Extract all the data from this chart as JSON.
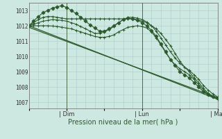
{
  "xlabel": "Pression niveau de la mer( hPa )",
  "bg_color": "#cce8e0",
  "grid_color": "#aacccc",
  "line_color": "#2d5a2d",
  "ylim": [
    1006.6,
    1013.5
  ],
  "yticks": [
    1007,
    1008,
    1009,
    1010,
    1011,
    1012,
    1013
  ],
  "xlim": [
    0,
    120
  ],
  "xtick_labels": [
    "",
    "| Dim",
    "",
    "| Lun",
    "",
    "| Mar"
  ],
  "xtick_positions": [
    0,
    24,
    48,
    72,
    96,
    120
  ],
  "vlines": [
    24,
    72,
    120
  ],
  "series": [
    {
      "x": [
        0,
        3,
        6,
        9,
        12,
        15,
        18,
        21,
        24,
        27,
        30,
        33,
        36,
        39,
        42,
        45,
        48,
        51,
        54,
        57,
        60,
        63,
        66,
        69,
        72,
        75,
        78,
        81,
        84,
        87,
        90,
        93,
        96,
        99,
        102,
        105,
        108,
        111,
        114,
        117,
        120
      ],
      "y": [
        1012.0,
        1012.2,
        1012.4,
        1012.55,
        1012.6,
        1012.6,
        1012.55,
        1012.5,
        1012.45,
        1012.45,
        1012.45,
        1012.45,
        1012.45,
        1012.45,
        1012.45,
        1012.45,
        1012.45,
        1012.45,
        1012.45,
        1012.45,
        1012.45,
        1012.45,
        1012.45,
        1012.4,
        1012.3,
        1012.2,
        1012.0,
        1011.8,
        1011.5,
        1011.1,
        1010.7,
        1010.2,
        1009.7,
        1009.3,
        1009.0,
        1008.6,
        1008.3,
        1007.9,
        1007.6,
        1007.4,
        1007.3
      ],
      "marker": "+",
      "lw": 0.8,
      "ms": 3
    },
    {
      "x": [
        0,
        3,
        6,
        9,
        12,
        15,
        18,
        21,
        24,
        27,
        30,
        33,
        36,
        39,
        42,
        45,
        48,
        51,
        54,
        57,
        60,
        63,
        66,
        69,
        72,
        75,
        78,
        81,
        84,
        87,
        90,
        93,
        96,
        99,
        102,
        105,
        108,
        111,
        114,
        117,
        120
      ],
      "y": [
        1012.0,
        1012.3,
        1012.6,
        1012.85,
        1013.0,
        1013.15,
        1013.25,
        1013.3,
        1013.2,
        1013.0,
        1012.8,
        1012.55,
        1012.3,
        1012.05,
        1011.85,
        1011.65,
        1011.65,
        1011.8,
        1012.0,
        1012.2,
        1012.4,
        1012.5,
        1012.45,
        1012.35,
        1012.2,
        1012.0,
        1011.7,
        1011.3,
        1010.8,
        1010.3,
        1009.8,
        1009.4,
        1009.0,
        1008.8,
        1008.6,
        1008.3,
        1008.0,
        1007.7,
        1007.5,
        1007.35,
        1007.3
      ],
      "marker": "D",
      "lw": 0.8,
      "ms": 2.5
    },
    {
      "x": [
        0,
        3,
        6,
        9,
        12,
        15,
        18,
        21,
        24,
        27,
        30,
        33,
        36,
        39,
        42,
        45,
        48,
        51,
        54,
        57,
        60,
        63,
        66,
        69,
        72,
        75,
        78,
        81,
        84,
        87,
        90,
        93,
        96,
        99,
        102,
        105,
        108,
        111,
        114,
        117,
        120
      ],
      "y": [
        1012.0,
        1012.1,
        1012.2,
        1012.3,
        1012.35,
        1012.4,
        1012.38,
        1012.35,
        1012.3,
        1012.2,
        1012.1,
        1011.95,
        1011.8,
        1011.65,
        1011.5,
        1011.5,
        1011.6,
        1011.75,
        1011.95,
        1012.2,
        1012.4,
        1012.55,
        1012.55,
        1012.5,
        1012.4,
        1012.25,
        1012.0,
        1011.65,
        1011.2,
        1010.75,
        1010.3,
        1009.9,
        1009.55,
        1009.3,
        1009.1,
        1008.8,
        1008.5,
        1008.1,
        1007.8,
        1007.55,
        1007.35
      ],
      "marker": "+",
      "lw": 0.8,
      "ms": 3
    },
    {
      "x": [
        0,
        3,
        6,
        9,
        12,
        15,
        18,
        21,
        24,
        27,
        30,
        33,
        36,
        39,
        42,
        45,
        48,
        51,
        54,
        57,
        60,
        63,
        66,
        69,
        72,
        75,
        78,
        81,
        84,
        87,
        90,
        93,
        96,
        99,
        102,
        105,
        108,
        111,
        114,
        117,
        120
      ],
      "y": [
        1012.0,
        1012.0,
        1012.0,
        1012.0,
        1012.0,
        1011.98,
        1011.95,
        1011.9,
        1011.85,
        1011.8,
        1011.7,
        1011.6,
        1011.5,
        1011.4,
        1011.3,
        1011.25,
        1011.25,
        1011.3,
        1011.4,
        1011.6,
        1011.75,
        1011.9,
        1011.95,
        1012.0,
        1011.95,
        1011.85,
        1011.6,
        1011.2,
        1010.75,
        1010.25,
        1009.8,
        1009.45,
        1009.2,
        1009.0,
        1008.8,
        1008.5,
        1008.15,
        1007.8,
        1007.55,
        1007.35,
        1007.2
      ],
      "marker": "+",
      "lw": 0.8,
      "ms": 3
    },
    {
      "x": [
        0,
        120
      ],
      "y": [
        1012.0,
        1007.2
      ],
      "marker": null,
      "lw": 0.9,
      "ms": 0
    },
    {
      "x": [
        0,
        120
      ],
      "y": [
        1011.9,
        1007.3
      ],
      "marker": null,
      "lw": 0.9,
      "ms": 0
    }
  ]
}
